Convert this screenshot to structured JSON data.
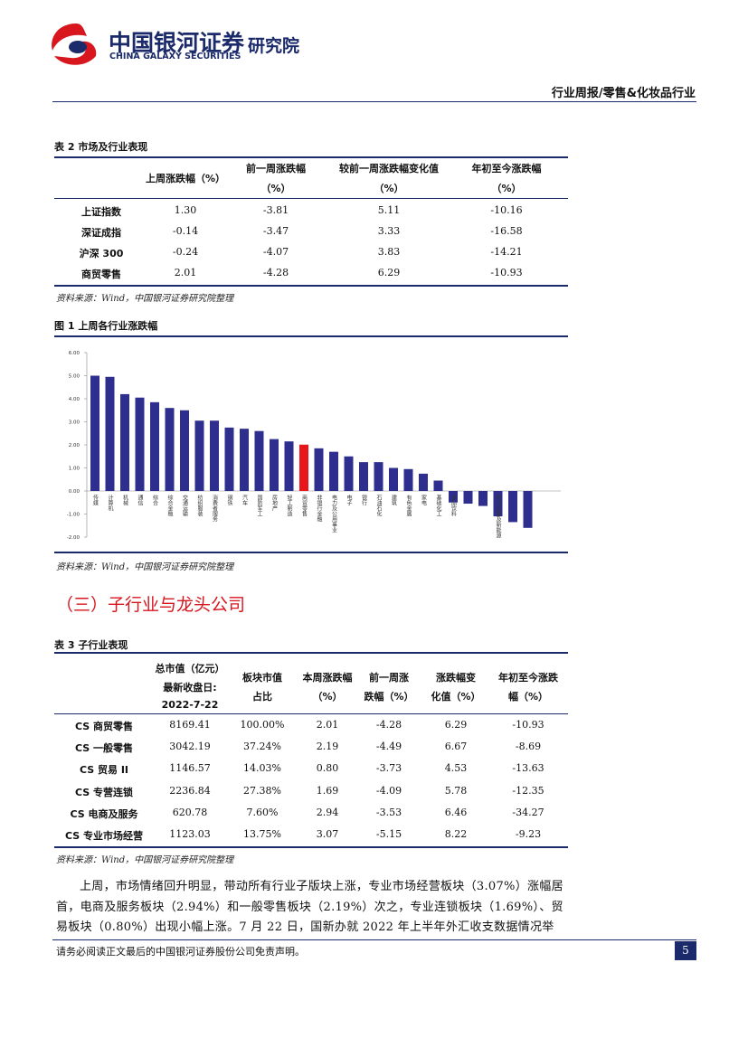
{
  "header": {
    "logo_cn": "中国银河证券",
    "logo_en": "CHINA GALAXY SECURITIES",
    "institute": "研究院",
    "report_type": "行业周报/零售&化妆品行业"
  },
  "table2": {
    "title": "表 2 市场及行业表现",
    "columns": [
      [
        "上周涨跌幅（%）"
      ],
      [
        "前一周涨跌幅",
        "（%）"
      ],
      [
        "较前一周涨跌幅变化值",
        "（%）"
      ],
      [
        "年初至今涨跌幅",
        "（%）"
      ]
    ],
    "rows": [
      [
        "上证指数",
        "1.30",
        "-3.81",
        "5.11",
        "-10.16"
      ],
      [
        "深证成指",
        "-0.14",
        "-3.47",
        "3.33",
        "-16.58"
      ],
      [
        "沪深 300",
        "-0.24",
        "-4.07",
        "3.83",
        "-14.21"
      ],
      [
        "商贸零售",
        "2.01",
        "-4.28",
        "6.29",
        "-10.93"
      ]
    ],
    "source": "资料来源：Wind，中国银河证券研究院整理"
  },
  "figure1": {
    "title": "图 1 上周各行业涨跌幅",
    "source": "资料来源：Wind，中国银河证券研究院整理"
  },
  "chart_data": {
    "type": "bar",
    "categories": [
      "传媒",
      "计算机",
      "机械",
      "通信",
      "综合",
      "综合金融",
      "交通运输",
      "纺织服装",
      "消费者服务",
      "钢铁",
      "汽车",
      "国防军工",
      "房地产",
      "轻工制造",
      "商贸零售",
      "非银行金融",
      "电力及公用事业",
      "电子",
      "银行",
      "石油石化",
      "建筑",
      "有色金属",
      "家电",
      "基础化工",
      "食品饮料",
      null,
      null,
      "电力设备及新能源",
      null,
      null
    ],
    "values": [
      5.0,
      4.95,
      4.2,
      4.05,
      3.85,
      3.6,
      3.5,
      3.05,
      3.05,
      2.75,
      2.7,
      2.6,
      2.25,
      2.15,
      2.01,
      1.85,
      1.7,
      1.5,
      1.25,
      1.25,
      1.0,
      0.95,
      0.75,
      0.45,
      -0.5,
      -0.55,
      -0.65,
      -1.1,
      -1.35,
      -1.6
    ],
    "colors": [
      "#2e2e8f",
      "#2e2e8f",
      "#2e2e8f",
      "#2e2e8f",
      "#2e2e8f",
      "#2e2e8f",
      "#2e2e8f",
      "#2e2e8f",
      "#2e2e8f",
      "#2e2e8f",
      "#2e2e8f",
      "#2e2e8f",
      "#2e2e8f",
      "#2e2e8f",
      "#e8151b",
      "#2e2e8f",
      "#2e2e8f",
      "#2e2e8f",
      "#2e2e8f",
      "#2e2e8f",
      "#2e2e8f",
      "#2e2e8f",
      "#2e2e8f",
      "#2e2e8f",
      "#2e2e8f",
      "#2e2e8f",
      "#2e2e8f",
      "#2e2e8f",
      "#2e2e8f",
      "#2e2e8f"
    ],
    "ylim": [
      -2,
      6
    ],
    "yticks": [
      {
        "value": 6,
        "label": "6.00"
      },
      {
        "value": 5,
        "label": "5.00"
      },
      {
        "value": 4,
        "label": "4.00"
      },
      {
        "value": 3,
        "label": "3.00"
      },
      {
        "value": 2,
        "label": "2.00"
      },
      {
        "value": 1,
        "label": "1.00"
      },
      {
        "value": 0,
        "label": "0.00"
      },
      {
        "value": -1,
        "label": "-1.00"
      },
      {
        "value": -2,
        "label": "-2.00"
      }
    ]
  },
  "section": {
    "heading": "（三）子行业与龙头公司"
  },
  "table3": {
    "title": "表 3 子行业表现",
    "columns": [
      [
        "总市值（亿元）",
        "最新收盘日:",
        "2022-7-22"
      ],
      [
        "板块市值",
        "占比"
      ],
      [
        "本周涨跌幅",
        "（%）"
      ],
      [
        "前一周涨",
        "跌幅（%）"
      ],
      [
        "涨跌幅变",
        "化值（%）"
      ],
      [
        "年初至今涨跌",
        "幅（%）"
      ]
    ],
    "rows": [
      [
        "CS 商贸零售",
        "8169.41",
        "100.00%",
        "2.01",
        "-4.28",
        "6.29",
        "-10.93"
      ],
      [
        "CS 一般零售",
        "3042.19",
        "37.24%",
        "2.19",
        "-4.49",
        "6.67",
        "-8.69"
      ],
      [
        "CS 贸易 II",
        "1146.57",
        "14.03%",
        "0.80",
        "-3.73",
        "4.53",
        "-13.63"
      ],
      [
        "CS 专营连锁",
        "2236.84",
        "27.38%",
        "1.69",
        "-4.09",
        "5.78",
        "-12.35"
      ],
      [
        "CS 电商及服务",
        "620.78",
        "7.60%",
        "2.94",
        "-3.53",
        "6.46",
        "-34.27"
      ],
      [
        "CS 专业市场经营",
        "1123.03",
        "13.75%",
        "3.07",
        "-5.15",
        "8.22",
        "-9.23"
      ]
    ],
    "source": "资料来源：Wind，中国银河证券研究院整理"
  },
  "paragraph": "上周，市场情绪回升明显，带动所有行业子版块上涨，专业市场经营板块（3.07%）涨幅居首，电商及服务板块（2.94%）和一般零售板块（2.19%）次之，专业连锁板块（1.69%）、贸易板块（0.80%）出现小幅上涨。7 月 22 日，国新办就 2022 年上半年外汇收支数据情况举",
  "footer": {
    "disclaimer": "请务必阅读正文最后的中国银河证券股份公司免责声明。",
    "page_number": "5"
  }
}
